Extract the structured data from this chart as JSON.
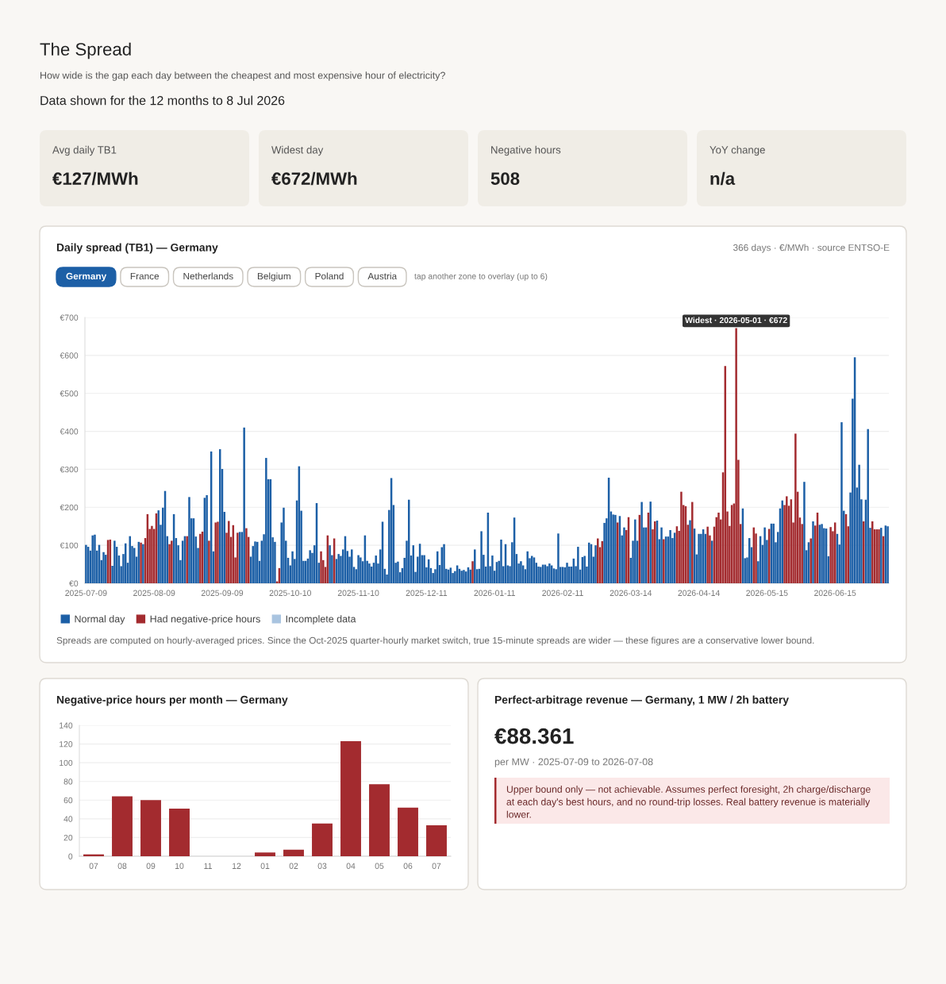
{
  "chart_data": [
    {
      "type": "other",
      "title": "The Spread",
      "subtitle": "How wide is the gap each day between the cheapest and most expensive hour of electricity?",
      "annotations": [
        "Data shown for the 12 months to 8 Jul 2026"
      ],
      "categories": [
        "Avg daily TB1",
        "Widest day",
        "Negative hours",
        "YoY change"
      ],
      "value_labels": [
        "€127/MWh",
        "€672/MWh",
        "508",
        "n/a"
      ]
    },
    {
      "type": "bar",
      "title": "Daily spread (TB1) — Germany",
      "subtitle": "366 days · €/MWh · source ENTSO-E",
      "categories": [
        "2025-07-09",
        null,
        null,
        null,
        null,
        null,
        null,
        null,
        null,
        null,
        null,
        null,
        null,
        null,
        null,
        null,
        null,
        null,
        null,
        null,
        null,
        null,
        null,
        null,
        null,
        null,
        null,
        null,
        null,
        null,
        null,
        "2025-08-09",
        null,
        null,
        null,
        null,
        null,
        null,
        null,
        null,
        null,
        null,
        null,
        null,
        null,
        null,
        null,
        null,
        null,
        null,
        null,
        null,
        null,
        null,
        null,
        null,
        null,
        null,
        null,
        null,
        null,
        null,
        "2025-09-09",
        null,
        null,
        null,
        null,
        null,
        null,
        null,
        null,
        null,
        null,
        null,
        null,
        null,
        null,
        null,
        null,
        null,
        null,
        null,
        null,
        null,
        null,
        null,
        null,
        null,
        null,
        null,
        null,
        null,
        null,
        "2025-10-10",
        null,
        null,
        null,
        null,
        null,
        null,
        null,
        null,
        null,
        null,
        null,
        null,
        null,
        null,
        null,
        null,
        null,
        null,
        null,
        null,
        null,
        null,
        null,
        null,
        null,
        null,
        null,
        null,
        null,
        null,
        "2025-11-10",
        null,
        null,
        null,
        null,
        null,
        null,
        null,
        null,
        null,
        null,
        null,
        null,
        null,
        null,
        null,
        null,
        null,
        null,
        null,
        null,
        null,
        null,
        null,
        null,
        null,
        null,
        null,
        null,
        null,
        null,
        "2025-12-11",
        null,
        null,
        null,
        null,
        null,
        null,
        null,
        null,
        null,
        null,
        null,
        null,
        null,
        null,
        null,
        null,
        null,
        null,
        null,
        null,
        null,
        null,
        null,
        null,
        null,
        null,
        null,
        null,
        null,
        null,
        "2026-01-11",
        null,
        null,
        null,
        null,
        null,
        null,
        null,
        null,
        null,
        null,
        null,
        null,
        null,
        null,
        null,
        null,
        null,
        null,
        null,
        null,
        null,
        null,
        null,
        null,
        null,
        null,
        null,
        null,
        null,
        null,
        "2026-02-11",
        null,
        null,
        null,
        null,
        null,
        null,
        null,
        null,
        null,
        null,
        null,
        null,
        null,
        null,
        null,
        null,
        null,
        null,
        null,
        null,
        null,
        null,
        null,
        null,
        null,
        null,
        null,
        null,
        null,
        null,
        "2026-03-14",
        null,
        null,
        null,
        null,
        null,
        null,
        null,
        null,
        null,
        null,
        null,
        null,
        null,
        null,
        null,
        null,
        null,
        null,
        null,
        null,
        null,
        null,
        null,
        null,
        null,
        null,
        null,
        null,
        null,
        null,
        "2026-04-14",
        null,
        null,
        null,
        null,
        null,
        null,
        null,
        null,
        null,
        null,
        null,
        null,
        null,
        null,
        null,
        null,
        null,
        null,
        null,
        null,
        null,
        null,
        null,
        null,
        null,
        null,
        null,
        null,
        null,
        null,
        "2026-05-15",
        null,
        null,
        null,
        null,
        null,
        null,
        null,
        null,
        null,
        null,
        null,
        null,
        null,
        null,
        null,
        null,
        null,
        null,
        null,
        null,
        null,
        null,
        null,
        null,
        null,
        null,
        null,
        null,
        null,
        null,
        "2026-06-15",
        null,
        null,
        null,
        null,
        null,
        null,
        null,
        null,
        null,
        null,
        null,
        null,
        null,
        null,
        null,
        null,
        null,
        null,
        null,
        null,
        null,
        null,
        null,
        null
      ],
      "series": [
        {
          "name": "Normal day",
          "color": "#1c5fa6",
          "values": [
            101,
            96,
            86,
            126,
            128,
            86,
            101,
            61,
            82,
            75,
            null,
            null,
            46,
            112,
            96,
            73,
            45,
            77,
            105,
            54,
            124,
            98,
            93,
            70,
            109,
            null,
            103,
            null,
            null,
            null,
            null,
            null,
            null,
            192,
            154,
            199,
            243,
            124,
            null,
            null,
            182,
            119,
            100,
            61,
            112,
            124,
            null,
            227,
            171,
            171,
            123,
            93,
            null,
            null,
            225,
            232,
            null,
            347,
            84,
            null,
            null,
            353,
            301,
            188,
            null,
            null,
            null,
            null,
            null,
            null,
            135,
            135,
            410,
            null,
            null,
            70,
            98,
            110,
            109,
            59,
            112,
            129,
            330,
            274,
            274,
            121,
            109,
            null,
            null,
            160,
            199,
            112,
            67,
            47,
            84,
            64,
            218,
            308,
            191,
            59,
            59,
            65,
            87,
            80,
            100,
            211,
            54,
            null,
            null,
            null,
            null,
            100,
            74,
            null,
            64,
            77,
            72,
            89,
            124,
            85,
            70,
            89,
            43,
            37,
            74,
            68,
            58,
            126,
            59,
            52,
            44,
            54,
            73,
            52,
            89,
            162,
            38,
            23,
            193,
            277,
            206,
            54,
            57,
            29,
            40,
            67,
            112,
            220,
            73,
            100,
            30,
            70,
            104,
            74,
            74,
            42,
            63,
            40,
            27,
            37,
            84,
            48,
            95,
            103,
            38,
            36,
            41,
            27,
            32,
            47,
            38,
            33,
            35,
            31,
            42,
            36,
            null,
            89,
            37,
            38,
            137,
            75,
            44,
            186,
            45,
            73,
            33,
            56,
            59,
            115,
            45,
            103,
            47,
            45,
            108,
            173,
            77,
            52,
            58,
            47,
            37,
            84,
            66,
            72,
            68,
            54,
            44,
            43,
            49,
            49,
            45,
            52,
            47,
            39,
            37,
            131,
            43,
            43,
            42,
            54,
            44,
            44,
            65,
            45,
            96,
            36,
            69,
            72,
            44,
            107,
            103,
            70,
            100,
            null,
            null,
            null,
            159,
            171,
            278,
            189,
            181,
            180,
            null,
            177,
            126,
            147,
            null,
            null,
            67,
            112,
            168,
            112,
            null,
            214,
            147,
            147,
            null,
            215,
            null,
            null,
            165,
            116,
            147,
            null,
            123,
            123,
            140,
            119,
            133,
            null,
            null,
            null,
            null,
            null,
            null,
            166,
            null,
            144,
            76,
            130,
            130,
            142,
            130,
            null,
            null,
            112,
            null,
            null,
            null,
            null,
            null,
            null,
            null,
            null,
            null,
            null,
            null,
            null,
            null,
            197,
            66,
            68,
            119,
            95,
            null,
            null,
            58,
            124,
            101,
            147,
            114,
            null,
            157,
            157,
            108,
            135,
            197,
            218,
            null,
            null,
            null,
            null,
            null,
            null,
            null,
            null,
            null,
            267,
            87,
            108,
            null,
            163,
            null,
            null,
            154,
            156,
            145,
            144,
            71,
            null,
            null,
            null,
            130,
            102,
            424,
            191,
            null,
            null,
            239,
            486,
            595,
            252,
            312,
            221,
            null,
            220,
            406,
            146,
            null,
            null,
            null,
            null,
            146,
            null,
            152,
            150
          ]
        },
        {
          "name": "Had negative-price hours",
          "color": "#a32b2f",
          "values": [
            null,
            null,
            null,
            null,
            null,
            null,
            null,
            null,
            null,
            null,
            114,
            115,
            null,
            null,
            null,
            null,
            null,
            null,
            null,
            null,
            null,
            null,
            null,
            null,
            null,
            107,
            null,
            119,
            182,
            143,
            151,
            143,
            184,
            null,
            null,
            null,
            null,
            null,
            103,
            112,
            null,
            null,
            null,
            null,
            null,
            null,
            124,
            null,
            null,
            null,
            null,
            null,
            130,
            136,
            null,
            null,
            112,
            null,
            null,
            160,
            162,
            null,
            null,
            null,
            133,
            164,
            122,
            153,
            68,
            133,
            null,
            null,
            null,
            145,
            122,
            null,
            null,
            null,
            null,
            null,
            null,
            null,
            null,
            null,
            null,
            null,
            null,
            5,
            40,
            null,
            null,
            null,
            null,
            null,
            null,
            null,
            null,
            null,
            null,
            null,
            null,
            null,
            null,
            null,
            null,
            null,
            null,
            84,
            61,
            43,
            126,
            null,
            null,
            118,
            null,
            null,
            null,
            null,
            null,
            null,
            null,
            null,
            null,
            null,
            null,
            null,
            null,
            null,
            null,
            null,
            null,
            null,
            null,
            null,
            null,
            null,
            null,
            null,
            null,
            null,
            null,
            null,
            null,
            null,
            null,
            null,
            null,
            null,
            null,
            null,
            null,
            null,
            null,
            null,
            null,
            null,
            null,
            null,
            null,
            null,
            null,
            null,
            null,
            null,
            null,
            null,
            null,
            null,
            null,
            null,
            null,
            null,
            null,
            null,
            null,
            null,
            58,
            null,
            null,
            null,
            null,
            null,
            null,
            null,
            null,
            null,
            null,
            null,
            null,
            null,
            null,
            null,
            null,
            null,
            null,
            null,
            null,
            null,
            null,
            null,
            null,
            null,
            null,
            null,
            null,
            null,
            null,
            null,
            null,
            null,
            null,
            null,
            null,
            null,
            null,
            null,
            null,
            null,
            null,
            null,
            null,
            null,
            null,
            null,
            null,
            null,
            null,
            null,
            null,
            null,
            null,
            null,
            null,
            118,
            95,
            111,
            null,
            null,
            null,
            null,
            null,
            null,
            160,
            null,
            null,
            null,
            140,
            174,
            null,
            null,
            null,
            null,
            180,
            null,
            null,
            null,
            186,
            null,
            142,
            163,
            null,
            null,
            null,
            116,
            null,
            null,
            null,
            null,
            null,
            150,
            138,
            241,
            206,
            203,
            154,
            null,
            214,
            null,
            null,
            null,
            null,
            null,
            null,
            149,
            126,
            null,
            149,
            174,
            186,
            168,
            292,
            572,
            189,
            151,
            206,
            210,
            672,
            325,
            156,
            null,
            null,
            null,
            null,
            null,
            147,
            131,
            null,
            null,
            null,
            null,
            null,
            143,
            null,
            null,
            null,
            null,
            null,
            null,
            206,
            229,
            204,
            221,
            160,
            394,
            241,
            173,
            156,
            null,
            null,
            null,
            118,
            null,
            152,
            186,
            null,
            null,
            null,
            null,
            null,
            148,
            137,
            160,
            null,
            null,
            null,
            null,
            182,
            150,
            null,
            null,
            null,
            null,
            null,
            null,
            163,
            null,
            null,
            null,
            163,
            142,
            142,
            142,
            null,
            124,
            null,
            null
          ]
        },
        {
          "name": "Incomplete data",
          "color": "#a9c4e0",
          "values": [
            null,
            null,
            null,
            null,
            null,
            null,
            null,
            null,
            null,
            null,
            null,
            null,
            null,
            null,
            null,
            null,
            null,
            null,
            null,
            null,
            null,
            null,
            null,
            null,
            null,
            null,
            null,
            null,
            null,
            null,
            null,
            null,
            null,
            null,
            null,
            null,
            null,
            null,
            null,
            null,
            null,
            null,
            null,
            null,
            null,
            null,
            null,
            null,
            null,
            null,
            null,
            null,
            null,
            null,
            null,
            null,
            null,
            null,
            null,
            null,
            null,
            null,
            null,
            null,
            null,
            null,
            null,
            null,
            null,
            null,
            null,
            null,
            null,
            null,
            null,
            null,
            null,
            null,
            null,
            null,
            null,
            null,
            null,
            null,
            null,
            null,
            null,
            null,
            null,
            null,
            null,
            null,
            null,
            null,
            null,
            null,
            null,
            null,
            null,
            null,
            null,
            null,
            null,
            null,
            null,
            null,
            null,
            null,
            null,
            null,
            null,
            null,
            null,
            null,
            null,
            null,
            null,
            null,
            null,
            null,
            null,
            null,
            null,
            null,
            null,
            null,
            null,
            null,
            null,
            null,
            null,
            null,
            null,
            null,
            null,
            null,
            null,
            null,
            null,
            null,
            null,
            null,
            null,
            null,
            null,
            null,
            null,
            null,
            null,
            null,
            null,
            null,
            null,
            null,
            null,
            null,
            null,
            null,
            null,
            null,
            null,
            null,
            null,
            null,
            null,
            null,
            null,
            null,
            null,
            null,
            null,
            null,
            null,
            null,
            null,
            null,
            null,
            null,
            null,
            null,
            null,
            null,
            null,
            null,
            null,
            null,
            null,
            null,
            null,
            null,
            null,
            null,
            null,
            null,
            null,
            null,
            null,
            null,
            null,
            null,
            null,
            null,
            null,
            null,
            null,
            null,
            null,
            null,
            null,
            null,
            null,
            null,
            null,
            null,
            null,
            null,
            null,
            null,
            null,
            null,
            null,
            null,
            null,
            null,
            null,
            null,
            null,
            null,
            null,
            null,
            null,
            null,
            null,
            null,
            null,
            null,
            null,
            null,
            null,
            null,
            null,
            null,
            null,
            null,
            null,
            null,
            null,
            null,
            null,
            null,
            null,
            null,
            null,
            null,
            null,
            null,
            null,
            null,
            null,
            null,
            null,
            null,
            null,
            null,
            null,
            null,
            null,
            null,
            null,
            null,
            null,
            null,
            null,
            null,
            null,
            null,
            null,
            null,
            null,
            null,
            null,
            null,
            null,
            null,
            null,
            null,
            null,
            null,
            null,
            null,
            null,
            null,
            null,
            null,
            null,
            null,
            null,
            null,
            null,
            null,
            null,
            null,
            null,
            null,
            null,
            null,
            null,
            null,
            null,
            null,
            null,
            null,
            null,
            null,
            null,
            null,
            null,
            null,
            null,
            null,
            null,
            null,
            null,
            null,
            null,
            null,
            null,
            null,
            null,
            null,
            null,
            null,
            null,
            null,
            null,
            null,
            null,
            null,
            null,
            null,
            null,
            null,
            null,
            null,
            null,
            null,
            null,
            null,
            null,
            null,
            null,
            null,
            null,
            null,
            null,
            null,
            null,
            null,
            null,
            null,
            null,
            null,
            null,
            null,
            null,
            null
          ]
        }
      ],
      "ylim": [
        0,
        700
      ],
      "yticks": [
        {
          "value": 0,
          "label": "€0"
        },
        {
          "value": 100,
          "label": "€100"
        },
        {
          "value": 200,
          "label": "€200"
        },
        {
          "value": 300,
          "label": "€300"
        },
        {
          "value": 400,
          "label": "€400"
        },
        {
          "value": 500,
          "label": "€500"
        },
        {
          "value": 600,
          "label": "€600"
        },
        {
          "value": 700,
          "label": "€700"
        }
      ],
      "grid": "y",
      "legend": "bottom",
      "annotations": [
        {
          "text": "Widest · 2026-05-01 · €672",
          "y": 672
        },
        "Spreads are computed on hourly-averaged prices. Since the Oct-2025 quarter-hourly market switch, true 15-minute spreads are wider — these figures are a conservative lower bound."
      ]
    },
    {
      "type": "other",
      "categories": [
        "Germany",
        "France",
        "Netherlands",
        "Belgium",
        "Poland",
        "Austria"
      ],
      "annotations": [
        "tap another zone to overlay (up to 6)"
      ]
    },
    {
      "type": "bar",
      "title": "Negative-price hours per month — Germany",
      "categories": [
        "07",
        "08",
        "09",
        "10",
        "11",
        "12",
        "01",
        "02",
        "03",
        "04",
        "05",
        "06",
        "07"
      ],
      "values": [
        2,
        64,
        60,
        51,
        0,
        0,
        4,
        7,
        35,
        123,
        77,
        52,
        33
      ],
      "color": "#a32b2f",
      "ylim": [
        0,
        140
      ],
      "yticks": [
        0,
        20,
        40,
        60,
        80,
        100,
        120,
        140
      ],
      "grid": "y"
    },
    {
      "type": "other",
      "title": "Perfect-arbitrage revenue — Germany, 1 MW / 2h battery",
      "value_labels": [
        "€88.361"
      ],
      "subtitle": "per MW · 2025-07-09 to 2026-07-08",
      "annotations": [
        "Upper bound only — not achievable. Assumes perfect foresight, 2h charge/discharge at each day's best hours, and no round-trip losses. Real battery revenue is materially lower."
      ]
    }
  ]
}
